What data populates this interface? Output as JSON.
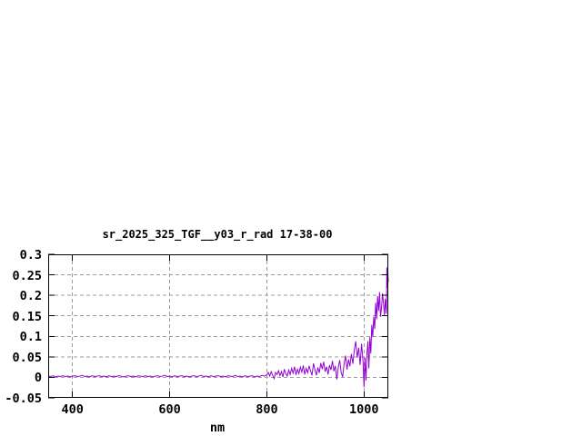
{
  "window": {
    "background": "#ffffff"
  },
  "chart_data": {
    "type": "line",
    "title": "sr_2025_325_TGF__y03_r_rad 17-38-00",
    "xlabel": "nm",
    "ylabel": "",
    "xlim": [
      350,
      1050
    ],
    "ylim": [
      -0.05,
      0.3
    ],
    "x_ticks": [
      400,
      600,
      800,
      1000
    ],
    "x_tick_labels": [
      "400",
      "600",
      "800",
      "1000"
    ],
    "y_ticks": [
      -0.05,
      0,
      0.05,
      0.1,
      0.15,
      0.2,
      0.25,
      0.3
    ],
    "y_tick_labels": [
      "-0.05",
      "0",
      "0.05",
      "0.1",
      "0.15",
      "0.2",
      "0.25",
      "0.3"
    ],
    "grid": true,
    "grid_style": "dashed",
    "legend": "none",
    "colors": {
      "line": "#9400d3",
      "grid": "#9c9c9c",
      "axis": "#000000",
      "text": "#000000"
    },
    "series": [
      {
        "name": "",
        "points": [
          [
            350,
            0.003
          ],
          [
            355,
            0.002
          ],
          [
            360,
            0.004
          ],
          [
            365,
            0.001
          ],
          [
            370,
            0.003
          ],
          [
            375,
            0.002
          ],
          [
            380,
            0.004
          ],
          [
            385,
            0.002
          ],
          [
            390,
            0.003
          ],
          [
            395,
            0.001
          ],
          [
            400,
            0.003
          ],
          [
            405,
            0.004
          ],
          [
            410,
            0.002
          ],
          [
            415,
            0.003
          ],
          [
            420,
            0.005
          ],
          [
            425,
            0.002
          ],
          [
            430,
            0.003
          ],
          [
            435,
            0.001
          ],
          [
            440,
            0.004
          ],
          [
            445,
            0.002
          ],
          [
            450,
            0.003
          ],
          [
            455,
            0.004
          ],
          [
            460,
            0.002
          ],
          [
            465,
            0.003
          ],
          [
            470,
            0.001
          ],
          [
            475,
            0.004
          ],
          [
            480,
            0.002
          ],
          [
            485,
            0.003
          ],
          [
            490,
            0.002
          ],
          [
            495,
            0.004
          ],
          [
            500,
            0.003
          ],
          [
            505,
            0.001
          ],
          [
            510,
            0.003
          ],
          [
            515,
            0.004
          ],
          [
            520,
            0.002
          ],
          [
            525,
            0.003
          ],
          [
            530,
            0.001
          ],
          [
            535,
            0.004
          ],
          [
            540,
            0.003
          ],
          [
            545,
            0.002
          ],
          [
            550,
            0.004
          ],
          [
            555,
            0.002
          ],
          [
            560,
            0.003
          ],
          [
            565,
            0.001
          ],
          [
            570,
            0.003
          ],
          [
            575,
            0.004
          ],
          [
            580,
            0.002
          ],
          [
            585,
            0.003
          ],
          [
            590,
            0.005
          ],
          [
            595,
            0.002
          ],
          [
            600,
            0.003
          ],
          [
            605,
            0.001
          ],
          [
            610,
            0.004
          ],
          [
            615,
            0.002
          ],
          [
            620,
            0.003
          ],
          [
            625,
            0.004
          ],
          [
            630,
            0.002
          ],
          [
            635,
            0.003
          ],
          [
            640,
            0.001
          ],
          [
            645,
            0.003
          ],
          [
            650,
            0.004
          ],
          [
            655,
            0.002
          ],
          [
            660,
            0.003
          ],
          [
            665,
            0.005
          ],
          [
            670,
            0.002
          ],
          [
            675,
            0.003
          ],
          [
            680,
            0.001
          ],
          [
            685,
            0.004
          ],
          [
            690,
            0.002
          ],
          [
            695,
            0.003
          ],
          [
            700,
            0.004
          ],
          [
            705,
            0.002
          ],
          [
            710,
            0.003
          ],
          [
            715,
            0.001
          ],
          [
            720,
            0.004
          ],
          [
            725,
            0.003
          ],
          [
            730,
            0.002
          ],
          [
            735,
            0.005
          ],
          [
            740,
            0.002
          ],
          [
            745,
            0.003
          ],
          [
            750,
            0.001
          ],
          [
            755,
            0.004
          ],
          [
            760,
            0.002
          ],
          [
            765,
            0.003
          ],
          [
            770,
            0.004
          ],
          [
            775,
            0.001
          ],
          [
            780,
            0.003
          ],
          [
            785,
            0.002
          ],
          [
            790,
            0.005
          ],
          [
            795,
            0.003
          ],
          [
            800,
            0.006
          ],
          [
            803,
            0.012
          ],
          [
            806,
            0.003
          ],
          [
            809,
            0.014
          ],
          [
            812,
            0.005
          ],
          [
            815,
            -0.003
          ],
          [
            818,
            0.012
          ],
          [
            821,
            0.007
          ],
          [
            824,
            0.016
          ],
          [
            827,
            0.004
          ],
          [
            830,
            0.014
          ],
          [
            833,
            0.001
          ],
          [
            836,
            0.02
          ],
          [
            839,
            0.009
          ],
          [
            842,
            0.003
          ],
          [
            845,
            0.018
          ],
          [
            848,
            0.007
          ],
          [
            851,
            0.022
          ],
          [
            854,
            0.01
          ],
          [
            857,
            0.026
          ],
          [
            860,
            0.006
          ],
          [
            863,
            0.02
          ],
          [
            866,
            0.009
          ],
          [
            869,
            0.025
          ],
          [
            872,
            0.013
          ],
          [
            875,
            0.029
          ],
          [
            878,
            0.007
          ],
          [
            881,
            0.022
          ],
          [
            884,
            0.011
          ],
          [
            887,
            0.028
          ],
          [
            890,
            0.016
          ],
          [
            893,
            0.005
          ],
          [
            896,
            0.034
          ],
          [
            899,
            0.018
          ],
          [
            902,
            0.005
          ],
          [
            905,
            0.024
          ],
          [
            908,
            0.011
          ],
          [
            911,
            0.035
          ],
          [
            914,
            0.02
          ],
          [
            917,
            0.038
          ],
          [
            920,
            0.014
          ],
          [
            923,
            0.026
          ],
          [
            926,
            0.007
          ],
          [
            929,
            0.03
          ],
          [
            932,
            0.018
          ],
          [
            935,
            0.04
          ],
          [
            938,
            0.015
          ],
          [
            941,
            0.028
          ],
          [
            944,
            -0.005
          ],
          [
            947,
            0.024
          ],
          [
            950,
            0.042
          ],
          [
            953,
            0.012
          ],
          [
            956,
            0.001
          ],
          [
            959,
            0.033
          ],
          [
            962,
            0.053
          ],
          [
            965,
            0.019
          ],
          [
            968,
            0.044
          ],
          [
            971,
            0.027
          ],
          [
            974,
            0.057
          ],
          [
            977,
            0.033
          ],
          [
            980,
            0.066
          ],
          [
            983,
            0.088
          ],
          [
            986,
            0.048
          ],
          [
            989,
            0.072
          ],
          [
            992,
            0.03
          ],
          [
            995,
            0.082
          ],
          [
            998,
            0.038
          ],
          [
            1000,
            -0.024
          ],
          [
            1002,
            0.048
          ],
          [
            1004,
            -0.008
          ],
          [
            1006,
            0.058
          ],
          [
            1008,
            0.088
          ],
          [
            1010,
            0.022
          ],
          [
            1012,
            0.098
          ],
          [
            1014,
            0.058
          ],
          [
            1016,
            0.128
          ],
          [
            1018,
            0.098
          ],
          [
            1020,
            0.148
          ],
          [
            1022,
            0.118
          ],
          [
            1024,
            0.182
          ],
          [
            1026,
            0.142
          ],
          [
            1028,
            0.198
          ],
          [
            1030,
            0.162
          ],
          [
            1032,
            0.208
          ],
          [
            1034,
            0.148
          ],
          [
            1036,
            0.168
          ],
          [
            1038,
            0.205
          ],
          [
            1040,
            0.182
          ],
          [
            1042,
            0.152
          ],
          [
            1044,
            0.192
          ],
          [
            1046,
            0.155
          ],
          [
            1047,
            0.268
          ],
          [
            1048,
            0.218
          ],
          [
            1049,
            0.262
          ],
          [
            1050,
            0.232
          ]
        ]
      }
    ]
  }
}
